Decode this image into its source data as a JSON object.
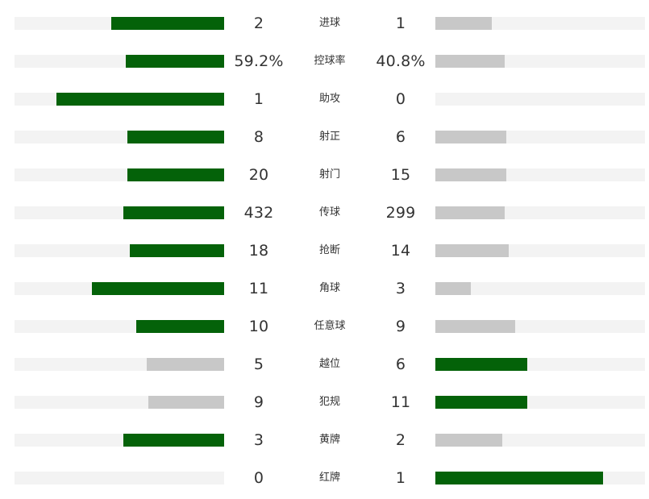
{
  "colors": {
    "leader": "#046209",
    "trailer": "#c8c8c8",
    "track": "#f3f3f3",
    "text": "#333333"
  },
  "chart_data": {
    "type": "bar",
    "categories": [
      "进球",
      "控球率",
      "助攻",
      "射正",
      "射门",
      "传球",
      "抢断",
      "角球",
      "任意球",
      "越位",
      "犯规",
      "黄牌",
      "红牌"
    ],
    "left_values": [
      "2",
      "59.2%",
      "1",
      "8",
      "20",
      "432",
      "18",
      "11",
      "10",
      "5",
      "9",
      "3",
      "0"
    ],
    "right_values": [
      "1",
      "40.8%",
      "0",
      "6",
      "15",
      "299",
      "14",
      "3",
      "9",
      "6",
      "11",
      "2",
      "1"
    ],
    "left_numeric": [
      2,
      59.2,
      1,
      8,
      20,
      432,
      18,
      11,
      10,
      5,
      9,
      3,
      0
    ],
    "right_numeric": [
      1,
      40.8,
      0,
      6,
      15,
      299,
      14,
      3,
      9,
      6,
      11,
      2,
      1
    ],
    "left_bar_fraction": [
      0.54,
      0.47,
      0.8,
      0.46,
      0.46,
      0.48,
      0.45,
      0.63,
      0.42,
      0.37,
      0.36,
      0.48,
      0.0
    ],
    "right_bar_fraction": [
      0.27,
      0.33,
      0.0,
      0.34,
      0.34,
      0.33,
      0.35,
      0.17,
      0.38,
      0.44,
      0.44,
      0.32,
      0.8
    ],
    "highlighted_side": [
      "left",
      "left",
      "left",
      "left",
      "left",
      "left",
      "left",
      "left",
      "left",
      "right",
      "right",
      "left",
      "right"
    ]
  }
}
